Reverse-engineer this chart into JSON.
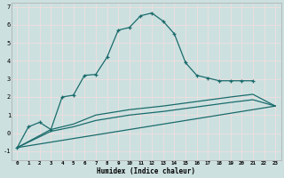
{
  "xlabel": "Humidex (Indice chaleur)",
  "bg_color": "#cde0e0",
  "grid_color": "#e8f4f4",
  "line_color": "#1a6b6b",
  "xlim": [
    -0.5,
    23.5
  ],
  "ylim": [
    -1.5,
    7.2
  ],
  "yticks": [
    -1,
    0,
    1,
    2,
    3,
    4,
    5,
    6,
    7
  ],
  "xticks": [
    0,
    1,
    2,
    3,
    4,
    5,
    6,
    7,
    8,
    9,
    10,
    11,
    12,
    13,
    14,
    15,
    16,
    17,
    18,
    19,
    20,
    21,
    22,
    23
  ],
  "curve1_x": [
    0,
    1,
    2,
    3,
    4,
    5,
    6,
    7,
    8,
    9,
    10,
    11,
    12,
    13,
    14,
    15,
    16,
    17,
    18,
    19,
    20,
    21
  ],
  "curve1_y": [
    -0.8,
    0.35,
    0.6,
    0.2,
    2.0,
    2.1,
    3.2,
    3.25,
    4.2,
    5.7,
    5.85,
    6.5,
    6.65,
    6.2,
    5.5,
    3.9,
    3.2,
    3.05,
    2.9,
    2.9,
    2.9,
    2.9
  ],
  "curve2_x": [
    0,
    3,
    5,
    7,
    10,
    13,
    16,
    19,
    21,
    23
  ],
  "curve2_y": [
    -0.8,
    0.2,
    0.5,
    1.0,
    1.3,
    1.5,
    1.75,
    2.0,
    2.15,
    1.5
  ],
  "curve3_x": [
    0,
    3,
    5,
    7,
    10,
    13,
    16,
    19,
    21,
    23
  ],
  "curve3_y": [
    -0.8,
    0.1,
    0.35,
    0.7,
    1.0,
    1.2,
    1.45,
    1.7,
    1.85,
    1.5
  ],
  "curve4_x": [
    0,
    23
  ],
  "curve4_y": [
    -0.8,
    1.5
  ]
}
